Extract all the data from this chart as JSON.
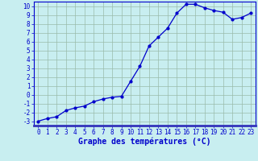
{
  "x": [
    0,
    1,
    2,
    3,
    4,
    5,
    6,
    7,
    8,
    9,
    10,
    11,
    12,
    13,
    14,
    15,
    16,
    17,
    18,
    19,
    20,
    21,
    22,
    23
  ],
  "y": [
    -3,
    -2.7,
    -2.5,
    -1.8,
    -1.5,
    -1.3,
    -0.8,
    -0.5,
    -0.3,
    -0.2,
    1.5,
    3.2,
    5.5,
    6.5,
    7.5,
    9.2,
    10.2,
    10.2,
    9.8,
    9.5,
    9.3,
    8.5,
    8.7,
    9.2
  ],
  "xlabel": "Graphe des températures (°C)",
  "ylim": [
    -3,
    10
  ],
  "xlim": [
    0,
    23
  ],
  "yticks": [
    -3,
    -2,
    -1,
    0,
    1,
    2,
    3,
    4,
    5,
    6,
    7,
    8,
    9,
    10
  ],
  "xticks": [
    0,
    1,
    2,
    3,
    4,
    5,
    6,
    7,
    8,
    9,
    10,
    11,
    12,
    13,
    14,
    15,
    16,
    17,
    18,
    19,
    20,
    21,
    22,
    23
  ],
  "line_color": "#0000cc",
  "marker": "o",
  "marker_size": 2.0,
  "line_width": 0.9,
  "bg_color": "#c8eef0",
  "grid_color": "#99bbaa",
  "xlabel_color": "#0000cc",
  "xlabel_fontsize": 7,
  "tick_label_color": "#0000cc",
  "tick_fontsize": 5.5,
  "bottom_bar_color": "#3333bb"
}
